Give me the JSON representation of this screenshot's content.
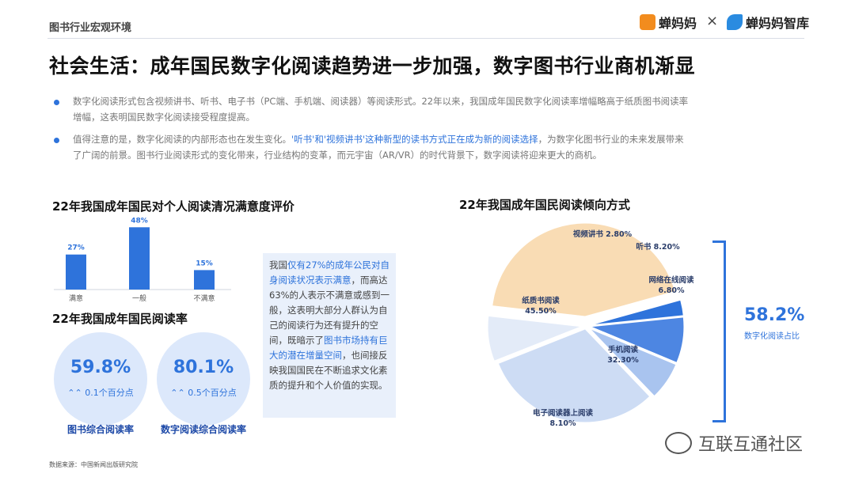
{
  "header": {
    "section": "图书行业宏观环境",
    "brand1": "蝉妈妈",
    "separator": "×",
    "brand2": "蝉妈妈智库"
  },
  "headline": "社会生活：成年国民数字化阅读趋势进一步加强，数字图书行业商机渐显",
  "bullets": [
    {
      "line1": "数字化阅读形式包含视频讲书、听书、电子书（PC端、手机端、阅读器）等阅读形式。22年以来，我国成年国民数字化阅读率增幅略高于纸质图书阅读率",
      "line2": "增幅，这表明国民数字化阅读接受程度提高。"
    },
    {
      "line1_a": "值得注意的是，数字化阅读的内部形态也在发生变化。",
      "line1_hl": "'听书'和'视频讲书'这种新型的读书方式正在成为新的阅读选择",
      "line1_b": "，为数字化图书行业的未来发展带来",
      "line2": "了广阔的前景。图书行业阅读形式的变化带来，行业结构的变革，而元宇宙（AR/VR）的时代背景下，数字阅读将迎来更大的商机。"
    }
  ],
  "satisfaction": {
    "title": "22年我国成年国民对个人阅读清况满意度评价"
  },
  "reading_rate": {
    "title": "22年我国成年国民阅读率",
    "items": [
      {
        "value": "59.8%",
        "change": "0.1个百分点",
        "label": "图书综合阅读率"
      },
      {
        "value": "80.1%",
        "change": "0.5个百分点",
        "label": "数字阅读综合阅读率"
      }
    ]
  },
  "textbox": {
    "p1": "我国",
    "h1": "仅有27%的成年公民对自身阅读状况表示满意",
    "p2": "，而高达63%的人表示不满意或感到一般，这表明大部分人群认为自己的阅读行为还有提升的空间，既暗示了",
    "h2": "图书市场持有巨大的潜在增量空间",
    "p3": "，也间接反映我国国民在不断追求文化素质的提升和个人价值的实现。"
  },
  "pie": {
    "title": "22年我国成年国民阅读倾向方式",
    "digital_total": "58.2%",
    "digital_label": "数字化阅读占比"
  },
  "chart_data": [
    {
      "type": "bar",
      "title": "22年我国成年国民对个人阅读清况满意度评价",
      "categories": [
        "满意",
        "一般",
        "不满意"
      ],
      "values": [
        27,
        48,
        15
      ],
      "value_labels": [
        "27%",
        "48%",
        "15%"
      ],
      "ylim": [
        0,
        50
      ],
      "color": "#2e73db"
    },
    {
      "type": "pie",
      "title": "22年我国成年国民阅读倾向方式",
      "categories": [
        "纸质书阅读",
        "视频讲书",
        "听书",
        "网络在线阅读",
        "手机阅读",
        "电子阅读器上阅读"
      ],
      "values": [
        45.5,
        2.8,
        8.2,
        6.8,
        32.3,
        8.1
      ],
      "value_labels": [
        "45.50%",
        "2.80%",
        "8.20%",
        "6.80%",
        "32.30%",
        "8.10%"
      ],
      "colors": [
        "#f9dcb4",
        "#2e73db",
        "#4d86e2",
        "#a9c4ef",
        "#cddcf4",
        "#e3ebf8"
      ]
    }
  ],
  "source": "数据来源：中国新闻出版研究院",
  "watermark": "互联互通社区",
  "colors": {
    "accent": "#2e73db",
    "paper": "#f9dcb4"
  }
}
